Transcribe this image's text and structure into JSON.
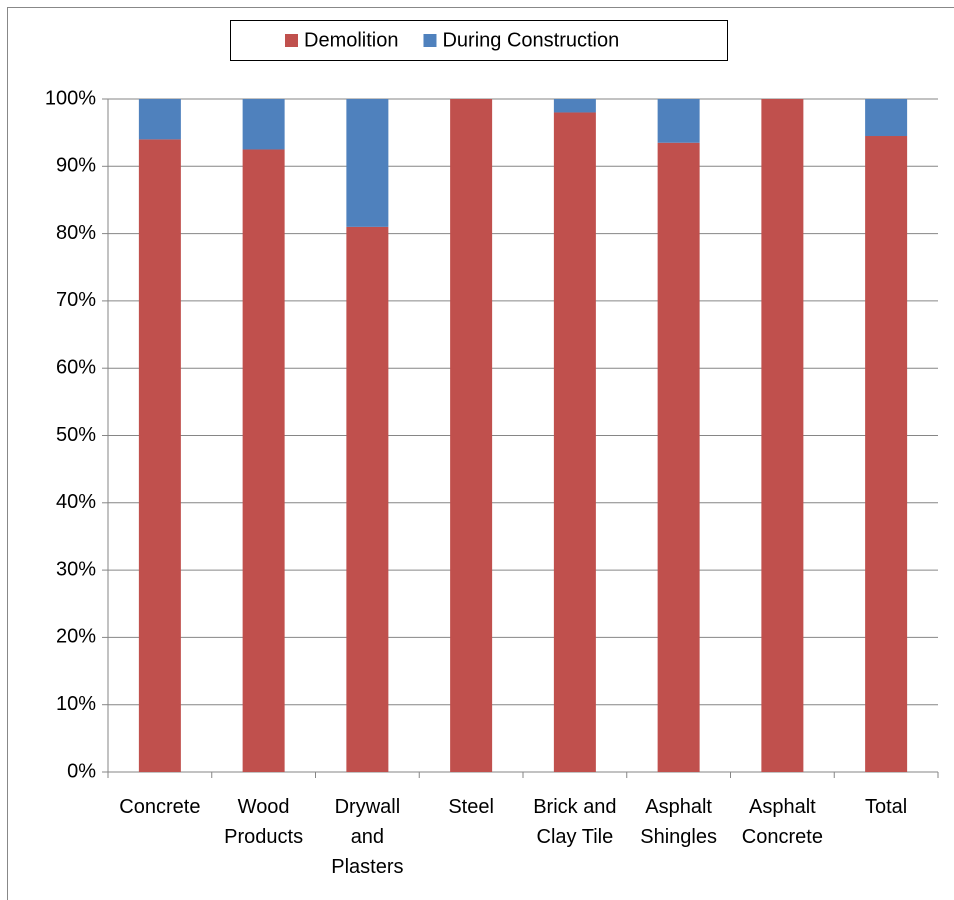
{
  "chart_data": {
    "type": "stacked_bar",
    "categories": [
      "Concrete",
      "Wood Products",
      "Drywall and Plasters",
      "Steel",
      "Brick and Clay Tile",
      "Asphalt Shingles",
      "Asphalt Concrete",
      "Total"
    ],
    "series": [
      {
        "name": "Demolition",
        "color": "#c0504d",
        "values": [
          94,
          92.5,
          81,
          100,
          98,
          93.5,
          100,
          94.5
        ]
      },
      {
        "name": "During Construction",
        "color": "#4f81bd",
        "values": [
          6,
          7.5,
          19,
          0,
          2,
          6.5,
          0,
          5.5
        ]
      }
    ],
    "ylim": [
      0,
      100
    ],
    "yticks": [
      {
        "value": 0,
        "label": "0%"
      },
      {
        "value": 10,
        "label": "10%"
      },
      {
        "value": 20,
        "label": "20%"
      },
      {
        "value": 30,
        "label": "30%"
      },
      {
        "value": 40,
        "label": "40%"
      },
      {
        "value": 50,
        "label": "50%"
      },
      {
        "value": 60,
        "label": "60%"
      },
      {
        "value": 70,
        "label": "70%"
      },
      {
        "value": 80,
        "label": "80%"
      },
      {
        "value": 90,
        "label": "90%"
      },
      {
        "value": 100,
        "label": "100%"
      }
    ],
    "grid": true,
    "legend": "top"
  }
}
